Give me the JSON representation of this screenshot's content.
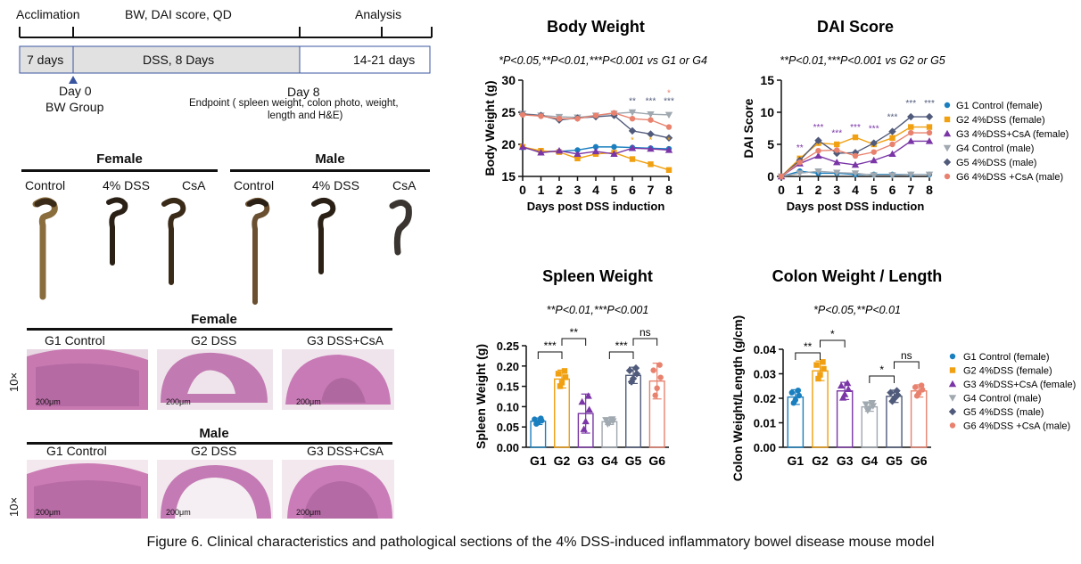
{
  "timeline": {
    "acclimation": "Acclimation",
    "measures": "BW, DAI score, QD",
    "analysis": "Analysis",
    "box_7days": "7 days",
    "box_dss": "DSS, 8 Days",
    "box_1421": "14-21 days",
    "day0": "Day 0",
    "bw_group": "BW Group",
    "day8": "Day 8",
    "endpoint": "Endpoint ( spleen weight,  colon photo, weight,",
    "endpoint2": "length and H&E)"
  },
  "colon_photos": {
    "female": "Female",
    "male": "Male",
    "labels": [
      "Control",
      "4% DSS",
      "CsA",
      "Control",
      "4% DSS",
      "CsA"
    ]
  },
  "histology": {
    "female": "Female",
    "male": "Male",
    "groups": [
      "G1 Control",
      "G2 DSS",
      "G3 DSS+CsA"
    ],
    "magnification": "10×",
    "scale": "200μm"
  },
  "legend_groups": [
    "G1 Control (female)",
    "G2 4%DSS (female)",
    "G3 4%DSS+CsA (female)",
    "G4 Control (male)",
    "G5 4%DSS (male)",
    "G6 4%DSS +CsA (male)"
  ],
  "colors": [
    "#1a7fbf",
    "#f0a010",
    "#7a35a6",
    "#a0a8b0",
    "#505a7a",
    "#e8826e"
  ],
  "caption": "Figure 6. Clinical characteristics and pathological sections of the 4% DSS-induced inflammatory bowel disease mouse model",
  "chart_data": [
    {
      "type": "line",
      "title": "Body Weight",
      "subtitle": "*P<0.05,**P<0.01,***P<0.001 vs G1 or G4",
      "xlabel": "Days post DSS induction",
      "ylabel": "Body Weight (g)",
      "x": [
        0,
        1,
        2,
        3,
        4,
        5,
        6,
        7,
        8
      ],
      "ylim": [
        15,
        30
      ],
      "yticks": [
        15,
        20,
        25,
        30
      ],
      "series": [
        {
          "name": "G1 Control (female)",
          "values": [
            19.5,
            18.9,
            18.9,
            19.1,
            19.6,
            19.6,
            19.5,
            19.4,
            19.3
          ]
        },
        {
          "name": "G2 4%DSS (female)",
          "values": [
            19.6,
            19.0,
            18.8,
            17.8,
            18.5,
            18.7,
            17.7,
            16.9,
            16.0
          ]
        },
        {
          "name": "G3 4%DSS+CsA (female)",
          "values": [
            19.6,
            18.7,
            19.0,
            18.5,
            18.9,
            18.5,
            19.4,
            19.3,
            19.1
          ]
        },
        {
          "name": "G4 Control (male)",
          "values": [
            24.8,
            24.5,
            24.3,
            24.2,
            24.5,
            24.8,
            25.0,
            24.7,
            24.6
          ]
        },
        {
          "name": "G5 4%DSS (male)",
          "values": [
            24.7,
            24.5,
            23.8,
            24.1,
            24.3,
            24.5,
            22.1,
            21.6,
            21.0
          ]
        },
        {
          "name": "G6 4%DSS +CsA (male)",
          "values": [
            24.6,
            24.4,
            24.0,
            24.0,
            24.5,
            24.9,
            24.0,
            23.8,
            22.7
          ]
        }
      ],
      "annotations": [
        "**",
        "***",
        "***",
        "*",
        "*",
        "*",
        "*"
      ]
    },
    {
      "type": "line",
      "title": "DAI Score",
      "subtitle": "**P<0.01,***P<0.001 vs G2 or G5",
      "xlabel": "Days post DSS induction",
      "ylabel": "DAI Score",
      "x": [
        0,
        1,
        2,
        3,
        4,
        5,
        6,
        7,
        8
      ],
      "ylim": [
        0,
        15
      ],
      "yticks": [
        0,
        5,
        10,
        15
      ],
      "series": [
        {
          "name": "G1 Control (female)",
          "values": [
            0,
            0.8,
            0.5,
            0.5,
            0.3,
            0.3,
            0.3,
            0.3,
            0.3
          ]
        },
        {
          "name": "G2 4%DSS (female)",
          "values": [
            0,
            2.8,
            5.2,
            5.0,
            6.1,
            5.0,
            6.0,
            7.7,
            7.7
          ]
        },
        {
          "name": "G3 4%DSS+CsA (female)",
          "values": [
            0,
            2.0,
            3.2,
            2.2,
            1.8,
            2.5,
            3.5,
            5.5,
            5.5
          ]
        },
        {
          "name": "G4 Control (male)",
          "values": [
            0,
            0.5,
            0.8,
            0.6,
            0.5,
            0.2,
            0.2,
            0.3,
            0.3
          ]
        },
        {
          "name": "G5 4%DSS (male)",
          "values": [
            0,
            2.5,
            5.6,
            3.6,
            3.7,
            5.2,
            7.0,
            9.3,
            9.3
          ]
        },
        {
          "name": "G6 4%DSS +CsA (male)",
          "values": [
            0,
            2.2,
            4.0,
            4.1,
            3.2,
            3.8,
            5.0,
            6.8,
            6.8
          ]
        }
      ],
      "annotations": [
        "**",
        "***",
        "***",
        "***",
        "***",
        "***",
        "***",
        "***"
      ]
    },
    {
      "type": "bar",
      "title": "Spleen Weight",
      "subtitle": "**P<0.01,***P<0.001",
      "xlabel": "",
      "ylabel": "Spleen Weight (g)",
      "categories": [
        "G1",
        "G2",
        "G3",
        "G4",
        "G5",
        "G6"
      ],
      "values": [
        0.064,
        0.168,
        0.083,
        0.063,
        0.177,
        0.163
      ],
      "errors": [
        0.008,
        0.022,
        0.048,
        0.007,
        0.02,
        0.044
      ],
      "ylim": [
        0,
        0.25
      ],
      "yticks": [
        0.0,
        0.05,
        0.1,
        0.15,
        0.2,
        0.25
      ],
      "significance": [
        {
          "pair": [
            "G1",
            "G2"
          ],
          "label": "***"
        },
        {
          "pair": [
            "G2",
            "G3"
          ],
          "label": "**"
        },
        {
          "pair": [
            "G4",
            "G5"
          ],
          "label": "***"
        },
        {
          "pair": [
            "G5",
            "G6"
          ],
          "label": "ns"
        }
      ]
    },
    {
      "type": "bar",
      "title": "Colon Weight / Length",
      "subtitle": "*P<0.05,**P<0.01",
      "xlabel": "",
      "ylabel": "Colon Weight/Length (g/cm)",
      "categories": [
        "G1",
        "G2",
        "G3",
        "G4",
        "G5",
        "G6"
      ],
      "values": [
        0.0205,
        0.0312,
        0.023,
        0.0165,
        0.0208,
        0.023
      ],
      "errors": [
        0.003,
        0.004,
        0.0035,
        0.0018,
        0.0025,
        0.0025
      ],
      "ylim": [
        0,
        0.04
      ],
      "yticks": [
        0.0,
        0.01,
        0.02,
        0.03,
        0.04
      ],
      "significance": [
        {
          "pair": [
            "G1",
            "G2"
          ],
          "label": "**"
        },
        {
          "pair": [
            "G2",
            "G3"
          ],
          "label": "*"
        },
        {
          "pair": [
            "G4",
            "G5"
          ],
          "label": "*"
        },
        {
          "pair": [
            "G5",
            "G6"
          ],
          "label": "ns"
        }
      ]
    }
  ]
}
